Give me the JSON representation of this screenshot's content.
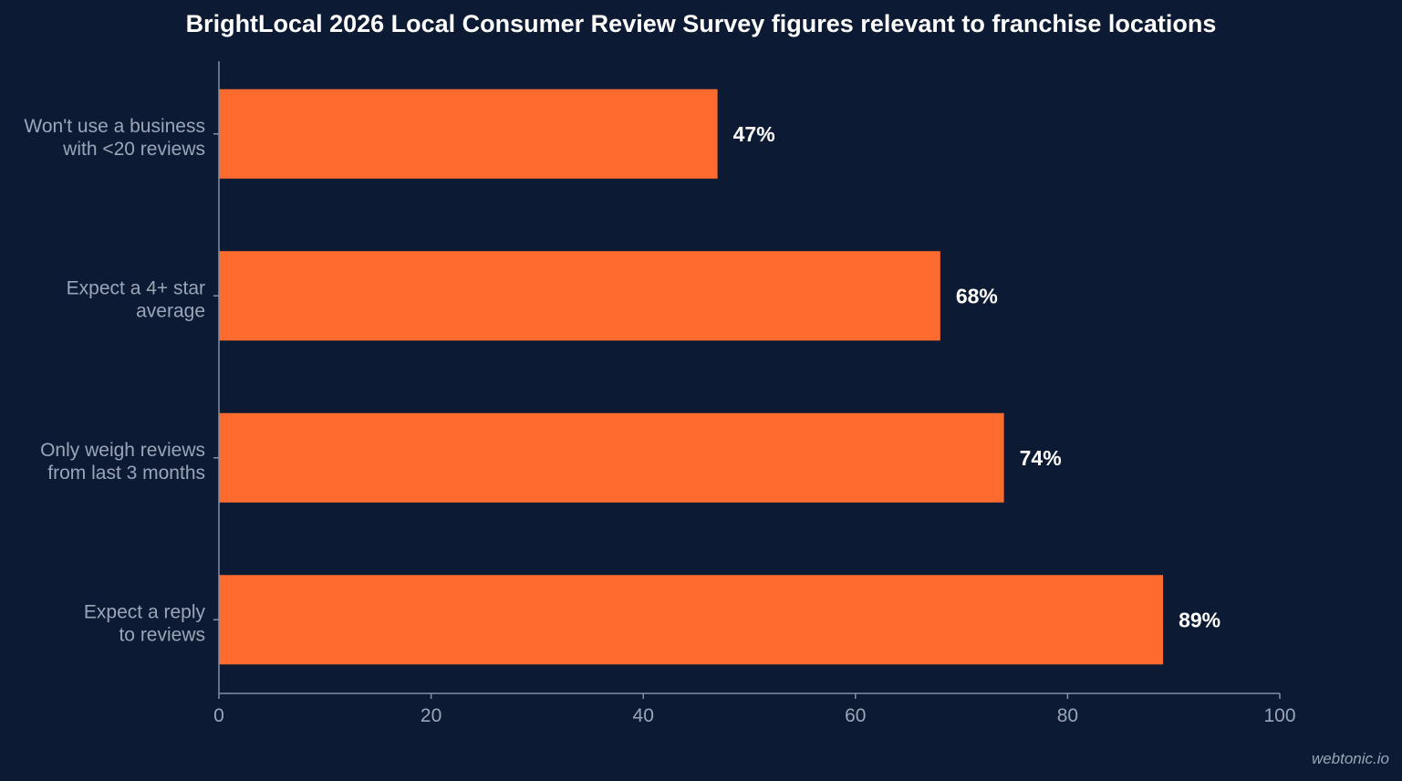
{
  "chart_data": {
    "type": "bar",
    "orientation": "horizontal",
    "title": "BrightLocal 2026 Local Consumer Review Survey figures relevant to franchise locations",
    "categories": [
      [
        "Won't use a business",
        "with <20 reviews"
      ],
      [
        "Expect a 4+ star",
        "average"
      ],
      [
        "Only weigh reviews",
        "from last 3 months"
      ],
      [
        "Expect a reply",
        "to reviews"
      ]
    ],
    "values": [
      47,
      68,
      74,
      89
    ],
    "value_labels": [
      "47%",
      "68%",
      "74%",
      "89%"
    ],
    "xlim": [
      0,
      100
    ],
    "xticks": [
      0,
      20,
      40,
      60,
      80,
      100
    ],
    "xtick_labels": [
      "0",
      "20",
      "40",
      "60",
      "80",
      "100"
    ],
    "xlabel": "",
    "ylabel": "",
    "grid": false,
    "colors": {
      "background": "#0c1b33",
      "bar": "#ff6b2e",
      "axis": "#8390a6",
      "tick_label": "#9aa5b8",
      "category_label": "#9aa5b8",
      "value_label": "#ffffff"
    }
  },
  "watermark": "webtonic.io"
}
